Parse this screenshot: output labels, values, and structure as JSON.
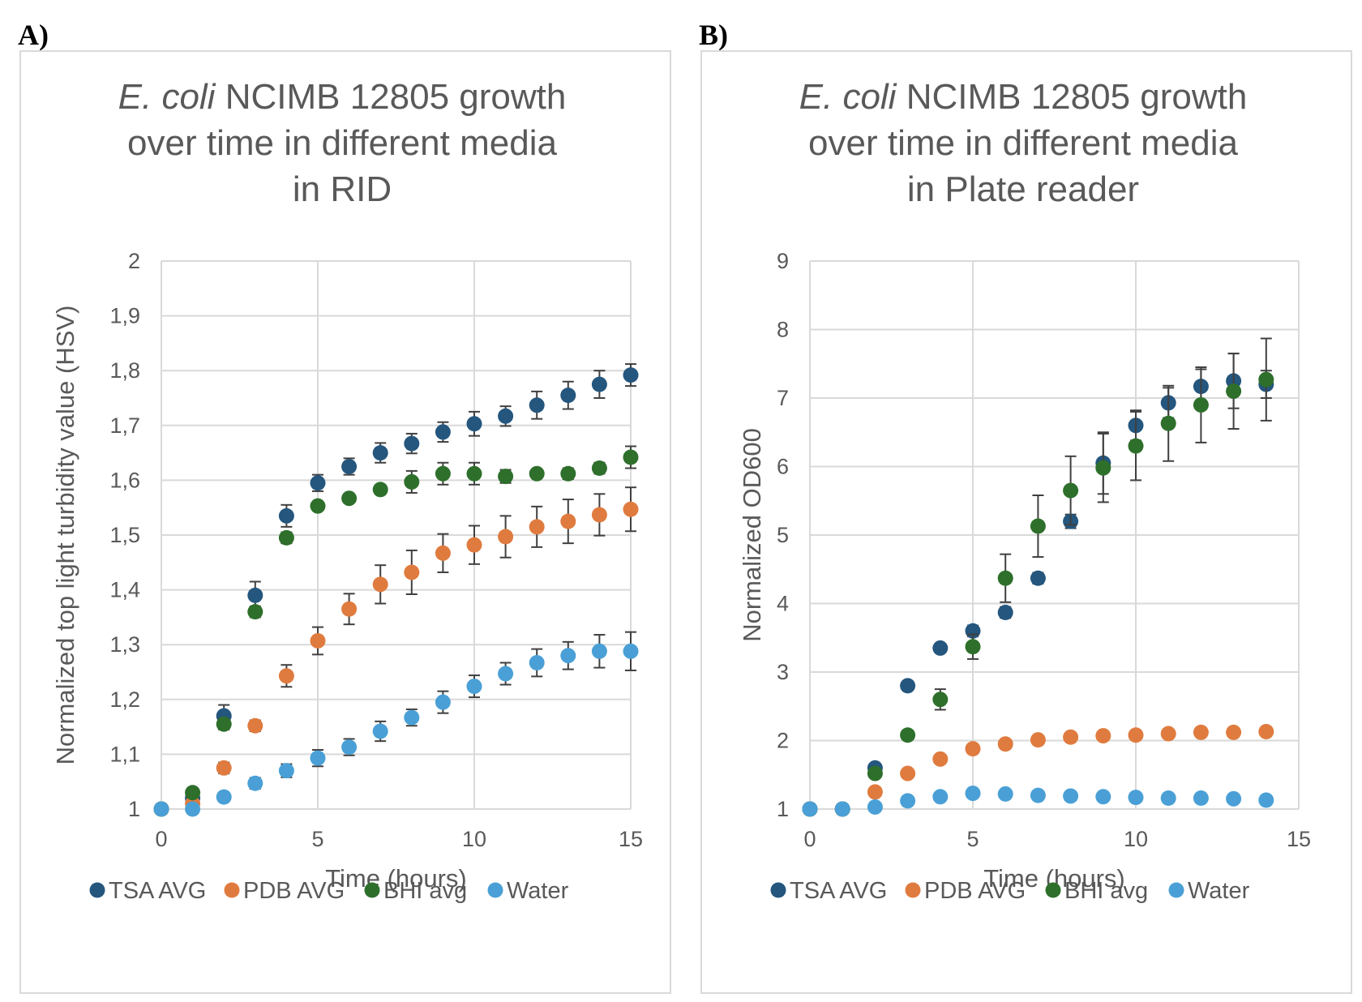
{
  "panels": {
    "a_label": "A)",
    "b_label": "B)"
  },
  "legend": [
    "TSA AVG",
    "PDB AVG",
    "BHI avg",
    "Water"
  ],
  "colors": {
    "TSA AVG": "#24567e",
    "PDB AVG": "#e07b3f",
    "BHI avg": "#2e6f2b",
    "Water": "#4aa0d6",
    "grid": "#d9d9d9",
    "text": "#595959",
    "errorbar": "#404040"
  },
  "chart_data": [
    {
      "type": "scatter",
      "title_lines": [
        {
          "italic": "E. coli",
          "rest": " NCIMB 12805 growth"
        },
        {
          "italic": "",
          "rest": "over time in different media"
        },
        {
          "italic": "",
          "rest": "in RID"
        }
      ],
      "xlabel": "Time (hours)",
      "ylabel": "Normalized top light turbidity value (HSV)",
      "xlim": [
        0,
        15
      ],
      "ylim": [
        1,
        2
      ],
      "xticks": [
        "0",
        "5",
        "10",
        "15"
      ],
      "yticks": [
        "1",
        "1,1",
        "1,2",
        "1,3",
        "1,4",
        "1,5",
        "1,6",
        "1,7",
        "1,8",
        "1,9",
        "2"
      ],
      "grid": true,
      "legend_position": "bottom",
      "series": [
        {
          "name": "TSA AVG",
          "x": [
            0,
            1,
            2,
            3,
            4,
            5,
            6,
            7,
            8,
            9,
            10,
            11,
            12,
            13,
            14,
            15
          ],
          "y": [
            1.0,
            1.02,
            1.17,
            1.39,
            1.535,
            1.595,
            1.625,
            1.65,
            1.667,
            1.688,
            1.703,
            1.717,
            1.737,
            1.755,
            1.775,
            1.792
          ],
          "err": [
            0,
            0.005,
            0.02,
            0.025,
            0.02,
            0.015,
            0.015,
            0.018,
            0.018,
            0.018,
            0.022,
            0.018,
            0.025,
            0.025,
            0.025,
            0.02
          ]
        },
        {
          "name": "PDB AVG",
          "x": [
            0,
            1,
            2,
            3,
            4,
            5,
            6,
            7,
            8,
            9,
            10,
            11,
            12,
            13,
            14,
            15
          ],
          "y": [
            1.0,
            1.01,
            1.075,
            1.152,
            1.243,
            1.307,
            1.365,
            1.41,
            1.432,
            1.467,
            1.482,
            1.497,
            1.515,
            1.525,
            1.537,
            1.547
          ],
          "err": [
            0,
            0.005,
            0.01,
            0.01,
            0.02,
            0.025,
            0.028,
            0.035,
            0.04,
            0.035,
            0.035,
            0.038,
            0.037,
            0.04,
            0.038,
            0.04
          ]
        },
        {
          "name": "BHI avg",
          "x": [
            0,
            1,
            2,
            3,
            4,
            5,
            6,
            7,
            8,
            9,
            10,
            11,
            12,
            13,
            14,
            15
          ],
          "y": [
            1.0,
            1.03,
            1.155,
            1.36,
            1.495,
            1.553,
            1.567,
            1.583,
            1.597,
            1.612,
            1.612,
            1.607,
            1.612,
            1.612,
            1.622,
            1.642
          ],
          "err": [
            0,
            0.005,
            0.01,
            0.01,
            0.01,
            0.008,
            0.008,
            0.008,
            0.02,
            0.02,
            0.02,
            0.012,
            0.008,
            0.01,
            0.01,
            0.02
          ]
        },
        {
          "name": "Water",
          "x": [
            0,
            1,
            2,
            3,
            4,
            5,
            6,
            7,
            8,
            9,
            10,
            11,
            12,
            13,
            14,
            15
          ],
          "y": [
            1.0,
            1.0,
            1.022,
            1.047,
            1.07,
            1.093,
            1.113,
            1.142,
            1.167,
            1.195,
            1.224,
            1.247,
            1.267,
            1.28,
            1.288,
            1.288
          ],
          "err": [
            0,
            0.005,
            0.008,
            0.01,
            0.012,
            0.015,
            0.015,
            0.018,
            0.015,
            0.02,
            0.02,
            0.02,
            0.025,
            0.025,
            0.03,
            0.035
          ]
        }
      ]
    },
    {
      "type": "scatter",
      "title_lines": [
        {
          "italic": "E. coli",
          "rest": " NCIMB 12805 growth"
        },
        {
          "italic": "",
          "rest": "over time in different media"
        },
        {
          "italic": "",
          "rest": "in Plate reader"
        }
      ],
      "xlabel": "Time (hours)",
      "ylabel": "Normalized OD600",
      "xlim": [
        0,
        15
      ],
      "ylim": [
        1,
        9
      ],
      "xticks": [
        "0",
        "5",
        "10",
        "15"
      ],
      "yticks": [
        "1",
        "2",
        "3",
        "4",
        "5",
        "6",
        "7",
        "8",
        "9"
      ],
      "grid": true,
      "legend_position": "bottom",
      "series": [
        {
          "name": "TSA AVG",
          "x": [
            0,
            1,
            2,
            3,
            4,
            5,
            6,
            7,
            8,
            9,
            10,
            11,
            12,
            13,
            14
          ],
          "y": [
            1.0,
            1.0,
            1.6,
            2.8,
            3.35,
            3.6,
            3.87,
            4.37,
            5.2,
            6.05,
            6.6,
            6.93,
            7.17,
            7.25,
            7.2
          ],
          "err": [
            0,
            0,
            0.05,
            0.05,
            0.05,
            0.08,
            0.08,
            0.08,
            0.1,
            0.45,
            0.22,
            0.22,
            0.25,
            0.4,
            0.2
          ]
        },
        {
          "name": "PDB AVG",
          "x": [
            0,
            1,
            2,
            3,
            4,
            5,
            6,
            7,
            8,
            9,
            10,
            11,
            12,
            13,
            14
          ],
          "y": [
            1.0,
            1.0,
            1.25,
            1.52,
            1.73,
            1.88,
            1.95,
            2.01,
            2.05,
            2.07,
            2.08,
            2.1,
            2.12,
            2.12,
            2.13
          ],
          "err": [
            0,
            0,
            0.03,
            0.03,
            0.03,
            0.03,
            0.03,
            0.05,
            0.03,
            0.03,
            0.03,
            0.03,
            0.03,
            0.03,
            0.03
          ]
        },
        {
          "name": "BHI avg",
          "x": [
            0,
            1,
            2,
            3,
            4,
            5,
            6,
            7,
            8,
            9,
            10,
            11,
            12,
            13,
            14
          ],
          "y": [
            1.0,
            1.0,
            1.52,
            2.08,
            2.6,
            3.37,
            4.37,
            5.13,
            5.65,
            5.98,
            6.3,
            6.63,
            6.9,
            7.1,
            7.27
          ],
          "err": [
            0,
            0,
            0.05,
            0.05,
            0.15,
            0.18,
            0.35,
            0.45,
            0.5,
            0.5,
            0.5,
            0.55,
            0.55,
            0.55,
            0.6
          ]
        },
        {
          "name": "Water",
          "x": [
            0,
            1,
            2,
            3,
            4,
            5,
            6,
            7,
            8,
            9,
            10,
            11,
            12,
            13,
            14
          ],
          "y": [
            1.0,
            1.0,
            1.03,
            1.12,
            1.18,
            1.23,
            1.22,
            1.2,
            1.19,
            1.18,
            1.17,
            1.16,
            1.16,
            1.15,
            1.13
          ],
          "err": [
            0,
            0,
            0.02,
            0.02,
            0.02,
            0.02,
            0.02,
            0.02,
            0.02,
            0.02,
            0.02,
            0.02,
            0.02,
            0.02,
            0.02
          ]
        }
      ]
    }
  ]
}
